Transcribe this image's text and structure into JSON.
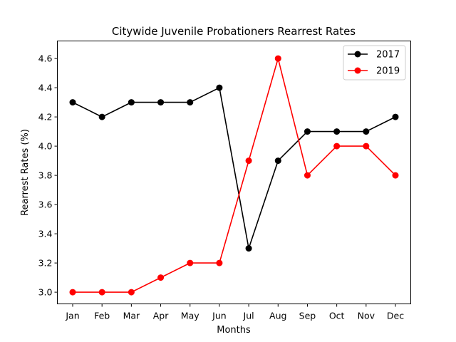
{
  "chart_data": {
    "type": "line",
    "title": "Citywide Juvenile Probationers Rearrest Rates",
    "xlabel": "Months",
    "ylabel": "Rearrest Rates (%)",
    "categories": [
      "Jan",
      "Feb",
      "Mar",
      "Apr",
      "May",
      "Jun",
      "Jul",
      "Aug",
      "Sep",
      "Oct",
      "Nov",
      "Dec"
    ],
    "ylim": [
      2.92,
      4.72
    ],
    "yticks": [
      "3.0",
      "3.2",
      "3.4",
      "3.6",
      "3.8",
      "4.0",
      "4.2",
      "4.4",
      "4.6"
    ],
    "grid": false,
    "legend_position": "top-right",
    "series": [
      {
        "name": "2017",
        "color": "#000000",
        "marker": "circle",
        "values": [
          4.3,
          4.2,
          4.3,
          4.3,
          4.3,
          4.4,
          3.3,
          3.9,
          4.1,
          4.1,
          4.1,
          4.2
        ]
      },
      {
        "name": "2019",
        "color": "#ff0000",
        "marker": "circle",
        "values": [
          3.0,
          3.0,
          3.0,
          3.1,
          3.2,
          3.2,
          3.9,
          4.6,
          3.8,
          4.0,
          4.0,
          3.8
        ]
      }
    ]
  }
}
